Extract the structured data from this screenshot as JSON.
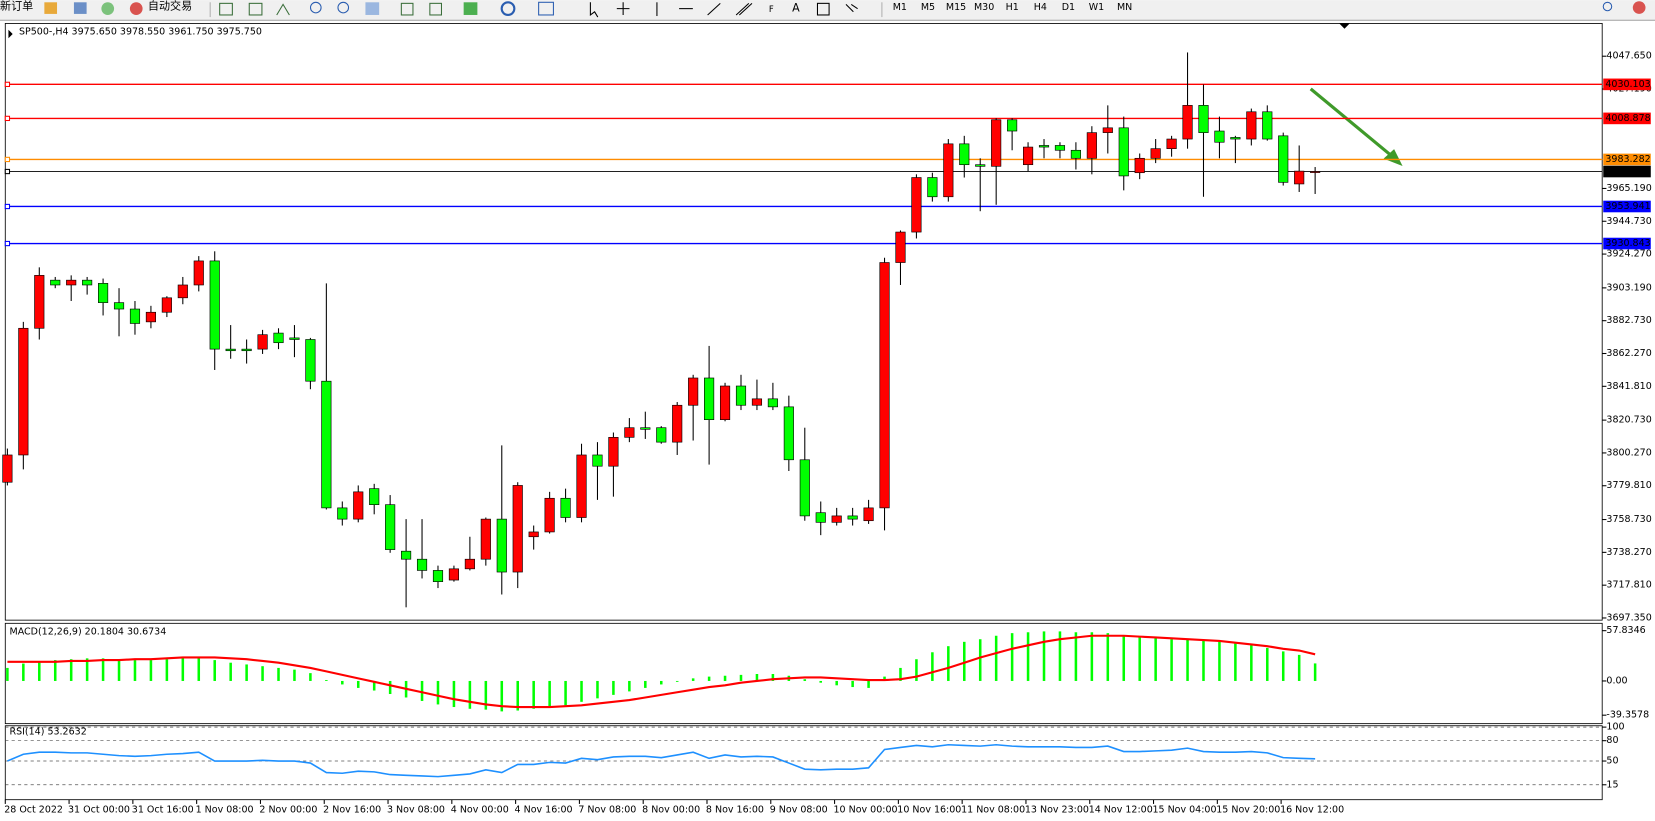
{
  "toolbar": {
    "new_order": "新订单",
    "auto_trading": "自动交易",
    "timeframes": [
      "M1",
      "M5",
      "M15",
      "M30",
      "H1",
      "H4",
      "D1",
      "W1",
      "MN"
    ]
  },
  "chart_data": [
    {
      "type": "candlestick",
      "title": "SP500-,H4 3975.650 3978.550 3961.750 3975.750",
      "categories": [
        "28 Oct 2022",
        null,
        null,
        null,
        "31 Oct 00:00",
        null,
        null,
        null,
        "31 Oct 16:00",
        null,
        null,
        null,
        "1 Nov 08:00",
        null,
        null,
        null,
        "2 Nov 00:00",
        null,
        null,
        null,
        "2 Nov 16:00",
        null,
        null,
        null,
        "3 Nov 08:00",
        null,
        null,
        null,
        "4 Nov 00:00",
        null,
        null,
        null,
        "4 Nov 16:00",
        null,
        null,
        null,
        "7 Nov 08:00",
        null,
        null,
        null,
        "8 Nov 00:00",
        null,
        null,
        null,
        "8 Nov 16:00",
        null,
        null,
        null,
        "9 Nov 08:00",
        null,
        null,
        null,
        "10 Nov 00:00",
        null,
        null,
        null,
        "10 Nov 16:00",
        null,
        null,
        null,
        "11 Nov 08:00",
        null,
        null,
        null,
        "13 Nov 23:00",
        null,
        null,
        null,
        "14 Nov 12:00",
        null,
        null,
        null,
        "15 Nov 04:00",
        null,
        null,
        null,
        "15 Nov 20:00",
        null,
        null,
        null,
        "16 Nov 12:00",
        null,
        null
      ],
      "open": [
        3782,
        3799,
        3878,
        3908,
        3905,
        3908,
        3906,
        3894,
        3890,
        3882,
        3888,
        3897,
        3905,
        3920,
        3865,
        3865,
        3865,
        3875,
        3872,
        3871,
        3845,
        3766,
        3759,
        3778,
        3768,
        3739,
        3734,
        3727,
        3721,
        3728,
        3734,
        3759,
        3726,
        3748,
        3751,
        3772,
        3760,
        3799,
        3792,
        3810,
        3816,
        3816,
        3807,
        3830,
        3847,
        3821,
        3842,
        3830,
        3834,
        3829,
        3796,
        3763,
        3757,
        3761,
        3758,
        3766,
        3919,
        3938,
        3972,
        3960,
        3993,
        3980,
        3979,
        4008,
        3980,
        3992,
        3992,
        3989,
        3984,
        4000,
        4003,
        3975,
        3984,
        3990,
        3996,
        4017,
        4001,
        3997,
        3996,
        4013,
        3998,
        3968,
        3975.65
      ],
      "high": [
        3803,
        3882,
        3916,
        3910,
        3911,
        3910,
        3909,
        3903,
        3895,
        3892,
        3898,
        3910,
        3923,
        3926,
        3880,
        3871,
        3877,
        3878,
        3880,
        3872,
        3906,
        3770,
        3780,
        3781,
        3774,
        3759,
        3759,
        3730,
        3730,
        3748,
        3760,
        3805,
        3782,
        3755,
        3776,
        3778,
        3806,
        3807,
        3813,
        3822,
        3826,
        3817,
        3832,
        3849,
        3867,
        3844,
        3849,
        3846,
        3844,
        3836,
        3816,
        3770,
        3766,
        3766,
        3771,
        3922,
        3939,
        3974,
        3975,
        3996,
        3998,
        3984,
        4009,
        4009,
        3994,
        3996,
        3994,
        3994,
        4004,
        4017,
        4010,
        3987,
        3996,
        3998,
        4050,
        4030,
        4010,
        3998,
        4015,
        4017,
        4000,
        3992,
        3978.55
      ],
      "low": [
        3780,
        3790,
        3871,
        3903,
        3895,
        3899,
        3886,
        3873,
        3874,
        3878,
        3885,
        3893,
        3901,
        3852,
        3859,
        3856,
        3862,
        3865,
        3860,
        3840,
        3765,
        3755,
        3757,
        3762,
        3738,
        3704,
        3722,
        3716,
        3720,
        3727,
        3730,
        3712,
        3716,
        3740,
        3750,
        3757,
        3757,
        3771,
        3773,
        3807,
        3809,
        3806,
        3799,
        3808,
        3793,
        3820,
        3827,
        3827,
        3827,
        3789,
        3758,
        3749,
        3755,
        3755,
        3756,
        3752,
        3905,
        3934,
        3957,
        3957,
        3972,
        3951,
        3955,
        3989,
        3976,
        3984,
        3984,
        3977,
        3974,
        3987,
        3964,
        3971,
        3981,
        3985,
        3990,
        3960,
        3984,
        3981,
        3992,
        3995,
        3967,
        3963,
        3961.75
      ],
      "close": [
        3799,
        3878,
        3911,
        3905,
        3908,
        3905,
        3894,
        3890,
        3881,
        3888,
        3897,
        3905,
        3920,
        3865,
        3864,
        3864,
        3874,
        3869,
        3871,
        3845,
        3766,
        3759,
        3776,
        3768,
        3740,
        3734,
        3727,
        3720,
        3728,
        3734,
        3759,
        3726,
        3780,
        3751,
        3772,
        3760,
        3799,
        3792,
        3810,
        3816,
        3815,
        3807,
        3830,
        3847,
        3821,
        3842,
        3830,
        3834,
        3829,
        3796,
        3761,
        3757,
        3761,
        3759,
        3766,
        3919,
        3938,
        3972,
        3960,
        3993,
        3980,
        3979,
        4008,
        4001,
        3991,
        3991,
        3989,
        3984,
        4000,
        4003,
        3973,
        3984,
        3990,
        3996,
        4017,
        4000,
        3994,
        3996,
        4013,
        3996,
        3969,
        3976,
        3975.75
      ],
      "up_color": "#ff0000",
      "down_color": "#00ff00",
      "ylim": [
        3696.0,
        4068.1
      ],
      "yticks": [
        {
          "value": 4047.65,
          "label": "4047.650"
        },
        {
          "value": 4027.19,
          "label": "4027.190"
        },
        {
          "value": 3965.19,
          "label": "3965.190"
        },
        {
          "value": 3944.73,
          "label": "3944.730"
        },
        {
          "value": 3924.27,
          "label": "3924.270"
        },
        {
          "value": 3903.19,
          "label": "3903.190"
        },
        {
          "value": 3882.73,
          "label": "3882.730"
        },
        {
          "value": 3862.27,
          "label": "3862.270"
        },
        {
          "value": 3841.81,
          "label": "3841.810"
        },
        {
          "value": 3820.73,
          "label": "3820.730"
        },
        {
          "value": 3800.27,
          "label": "3800.270"
        },
        {
          "value": 3779.81,
          "label": "3779.810"
        },
        {
          "value": 3758.73,
          "label": "3758.730"
        },
        {
          "value": 3738.27,
          "label": "3738.270"
        },
        {
          "value": 3717.81,
          "label": "3717.810"
        },
        {
          "value": 3697.35,
          "label": "3697.350"
        }
      ],
      "levels": [
        {
          "value": 4030.103,
          "label": "4030.103",
          "color": "#ff0000"
        },
        {
          "value": 4008.878,
          "label": "4008.878",
          "color": "#ff0000"
        },
        {
          "value": 3983.282,
          "label": "3983.282",
          "color": "#ff8c00"
        },
        {
          "value": 3975.75,
          "label": "3975.750",
          "color": "#000000"
        },
        {
          "value": 3953.941,
          "label": "3953.941",
          "color": "#0000ff"
        },
        {
          "value": 3930.843,
          "label": "3930.843",
          "color": "#0000ff"
        }
      ]
    },
    {
      "type": "macd",
      "title": "MACD(12,26,9) 20.1804 30.6734",
      "values": [
        15,
        20,
        22,
        24,
        25,
        26,
        26,
        25,
        24,
        24,
        25,
        26,
        27,
        24,
        21,
        19,
        17,
        15,
        13,
        9,
        1,
        -4,
        -8,
        -11,
        -15,
        -19,
        -23,
        -27,
        -30,
        -32,
        -33,
        -35,
        -34,
        -32,
        -30,
        -28,
        -24,
        -20,
        -16,
        -12,
        -8,
        -4,
        -1,
        3,
        5,
        6,
        7,
        8,
        8,
        6,
        2,
        -2,
        -5,
        -7,
        -8,
        5,
        15,
        25,
        33,
        40,
        45,
        48,
        52,
        55,
        56,
        57,
        57,
        56,
        56,
        55,
        52,
        50,
        49,
        48,
        48,
        47,
        45,
        43,
        41,
        38,
        34,
        30,
        20.1804
      ],
      "signal": [
        22,
        22,
        22,
        22,
        23,
        23,
        24,
        24,
        25,
        25,
        26,
        27,
        27,
        27,
        26,
        25,
        23,
        21,
        18,
        15,
        11,
        7,
        3,
        -1,
        -5,
        -9,
        -13,
        -17,
        -21,
        -24,
        -27,
        -29,
        -30,
        -30,
        -30,
        -29,
        -28,
        -26,
        -24,
        -22,
        -19,
        -16,
        -13,
        -10,
        -7,
        -5,
        -2,
        0,
        2,
        3,
        4,
        4,
        3,
        2,
        1,
        1,
        2,
        5,
        10,
        15,
        21,
        27,
        32,
        37,
        41,
        45,
        48,
        50,
        52,
        52,
        52,
        51,
        50,
        49,
        48,
        47,
        46,
        44,
        42,
        40,
        37,
        35,
        30.6734
      ],
      "color": "#00ff00",
      "signal_color": "#ff0000",
      "ylim": [
        -49.1,
        66.3
      ],
      "yticks": [
        {
          "value": 57.8346,
          "label": "57.8346"
        },
        {
          "value": 0,
          "label": "0.00"
        },
        {
          "value": -39.3578,
          "label": "-39.3578"
        }
      ]
    },
    {
      "type": "line",
      "title": "RSI(14) 53.2632",
      "values": [
        50,
        60,
        63,
        63,
        62,
        62,
        60,
        58,
        57,
        58,
        60,
        61,
        63,
        50,
        50,
        50,
        51,
        50,
        50,
        47,
        33,
        32,
        35,
        34,
        30,
        29,
        28,
        27,
        29,
        31,
        37,
        33,
        45,
        45,
        48,
        47,
        54,
        52,
        56,
        57,
        57,
        55,
        59,
        63,
        54,
        59,
        56,
        57,
        56,
        47,
        38,
        37,
        38,
        38,
        40,
        67,
        70,
        73,
        71,
        74,
        73,
        72,
        74,
        72,
        71,
        71,
        71,
        70,
        70,
        72,
        64,
        64,
        65,
        66,
        69,
        64,
        63,
        63,
        64,
        62,
        55,
        54,
        53.2632
      ],
      "color": "#1e90ff",
      "ylim": [
        -7,
        102
      ],
      "yticks": [
        100,
        80,
        50,
        15
      ]
    }
  ]
}
